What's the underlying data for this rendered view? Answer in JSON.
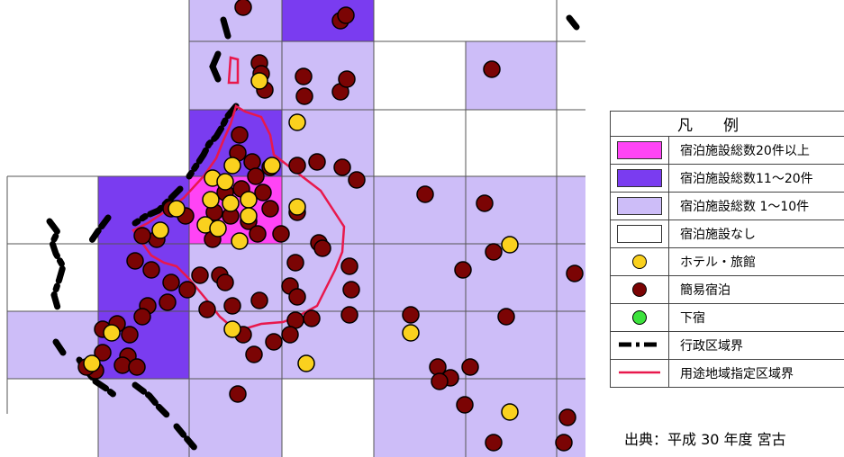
{
  "legend": {
    "title": "凡　　例",
    "items": [
      {
        "label": "宿泊施設総数20件以上",
        "color": "#ff44f5",
        "icon": "magenta-swatch"
      },
      {
        "label": "宿泊施設総数11～20件",
        "color": "#7a3cf0",
        "icon": "purple-swatch"
      },
      {
        "label": "宿泊施設総数 1～10件",
        "color": "#cdbdf8",
        "icon": "lavender-swatch"
      },
      {
        "label": "宿泊施設なし",
        "color": "#ffffff",
        "icon": "white-swatch"
      },
      {
        "label": "ホテル・旅館",
        "color": "#fad11e",
        "icon": "yellow-dot"
      },
      {
        "label": "簡易宿泊",
        "color": "#7b0404",
        "icon": "darkred-dot"
      },
      {
        "label": "下宿",
        "color": "#3ce23c",
        "icon": "green-dot"
      },
      {
        "label": "行政区域界",
        "color": "#000000",
        "icon": "dash-dot-line"
      },
      {
        "label": "用途地域指定区域界",
        "color": "#e8184c",
        "icon": "red-line"
      }
    ]
  },
  "source": "出典：平成 30 年度 宮古"
}
